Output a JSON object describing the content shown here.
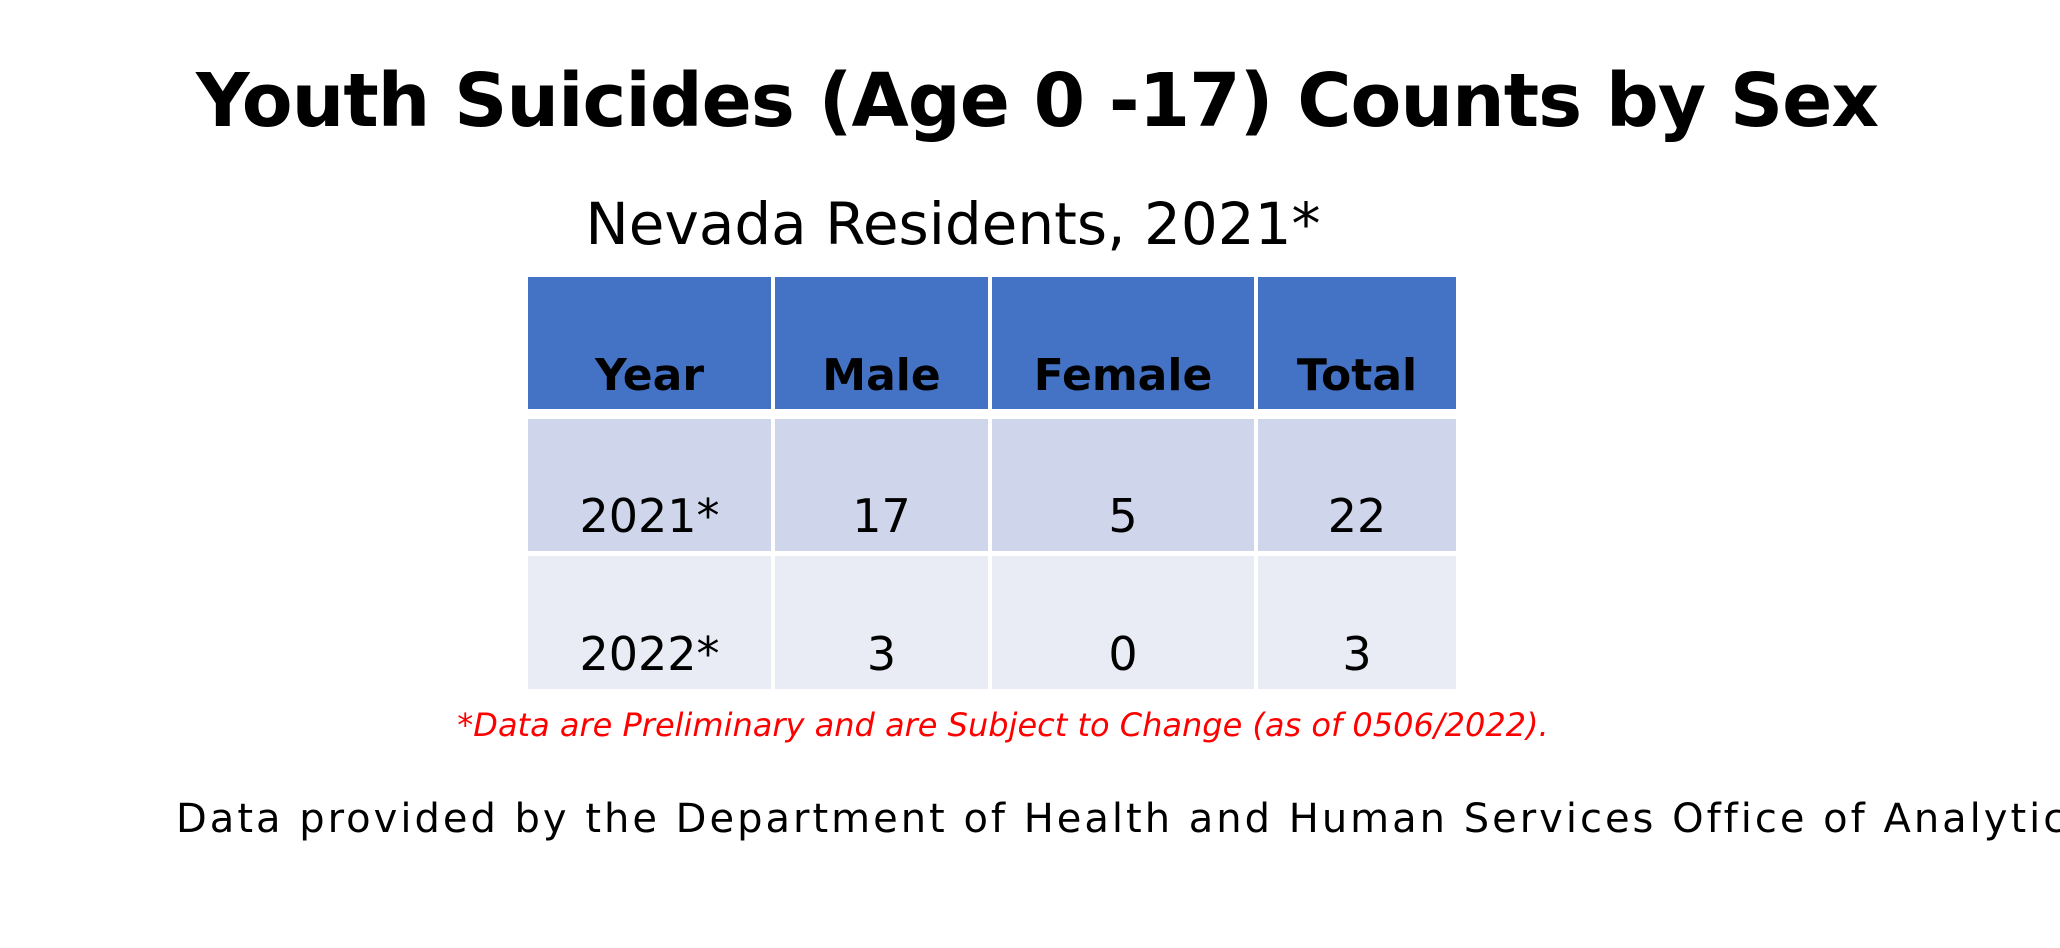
{
  "header": {
    "title": "Youth Suicides (Age 0 -17) Counts by Sex",
    "subtitle": "Nevada Residents, 2021*"
  },
  "table": {
    "columns": [
      "Year",
      "Male",
      "Female",
      "Total"
    ],
    "rows": [
      [
        "2021*",
        17,
        5,
        22
      ],
      [
        "2022*",
        3,
        0,
        3
      ]
    ]
  },
  "footnote": "*Data are Preliminary and are Subject to Change (as of 0506/2022).",
  "source": "Data provided by the Department of Health and Human Services Office of Analytics"
}
